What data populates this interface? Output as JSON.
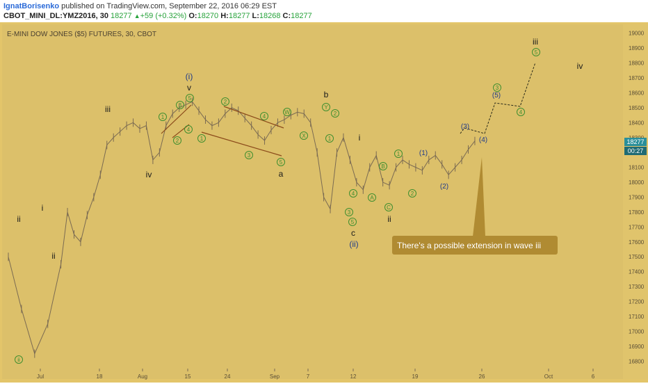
{
  "header": {
    "author": "IgnatBorisenko",
    "published_text": " published on TradingView.com, September 22, 2016 06:29 EST",
    "symbol": "CBOT_MINI_DL:YMZ2016, 30",
    "last": "18277",
    "change": "+59 (+0.32%)",
    "o_label": "O:",
    "o_value": "18270",
    "h_label": "H:",
    "h_value": "18277",
    "l_label": "L:",
    "l_value": "18268",
    "c_label": "C:",
    "c_value": "18277"
  },
  "colors": {
    "background": "#e3c56a",
    "panel": "#dcc06a",
    "candles": "#7a6a52",
    "wave_lines": "#8b4a1a",
    "circle_labels": "#3f8f2f",
    "label_dark": "#1a1a1a",
    "blue_labels": "#1f3a8a",
    "callout": "#b08b32",
    "price_tag": "#2a8f9a"
  },
  "chart_data": {
    "type": "line",
    "title": "E-MINI DOW JONES ($5) FUTURES, 30, CBOT",
    "ylim": [
      16750,
      19050
    ],
    "y_ticks": [
      16800,
      16900,
      17000,
      17100,
      17200,
      17300,
      17400,
      17500,
      17600,
      17700,
      17800,
      17900,
      18000,
      18100,
      18200,
      18300,
      18400,
      18500,
      18600,
      18700,
      18800,
      18900,
      19000
    ],
    "x_ticks": [
      "Jul",
      "18",
      "Aug",
      "15",
      "24",
      "Sep",
      "7",
      "12",
      "19",
      "26",
      "Oct",
      "6"
    ],
    "current_price": "18277",
    "countdown": "00:27",
    "price_series": [
      [
        0,
        17500
      ],
      [
        2,
        17150
      ],
      [
        4,
        16850
      ],
      [
        6,
        17050
      ],
      [
        8,
        17450
      ],
      [
        9,
        17800
      ],
      [
        10,
        17650
      ],
      [
        11,
        17600
      ],
      [
        12,
        17780
      ],
      [
        13,
        17900
      ],
      [
        14,
        18050
      ],
      [
        15,
        18250
      ],
      [
        16,
        18300
      ],
      [
        17,
        18340
      ],
      [
        18,
        18380
      ],
      [
        19,
        18400
      ],
      [
        20,
        18360
      ],
      [
        21,
        18380
      ],
      [
        22,
        18150
      ],
      [
        23,
        18200
      ],
      [
        24,
        18380
      ],
      [
        25,
        18460
      ],
      [
        26,
        18500
      ],
      [
        27,
        18520
      ],
      [
        28,
        18540
      ],
      [
        29,
        18480
      ],
      [
        30,
        18420
      ],
      [
        31,
        18380
      ],
      [
        32,
        18400
      ],
      [
        33,
        18460
      ],
      [
        34,
        18500
      ],
      [
        35,
        18480
      ],
      [
        36,
        18430
      ],
      [
        37,
        18380
      ],
      [
        38,
        18320
      ],
      [
        39,
        18280
      ],
      [
        40,
        18350
      ],
      [
        41,
        18400
      ],
      [
        42,
        18420
      ],
      [
        43,
        18450
      ],
      [
        44,
        18470
      ],
      [
        45,
        18460
      ],
      [
        46,
        18400
      ],
      [
        47,
        18200
      ],
      [
        48,
        17900
      ],
      [
        49,
        17820
      ],
      [
        50,
        18200
      ],
      [
        51,
        18300
      ],
      [
        52,
        18150
      ],
      [
        53,
        18000
      ],
      [
        54,
        17950
      ],
      [
        55,
        18100
      ],
      [
        56,
        18180
      ],
      [
        57,
        18000
      ],
      [
        58,
        17980
      ],
      [
        59,
        18100
      ],
      [
        60,
        18150
      ],
      [
        61,
        18120
      ],
      [
        62,
        18100
      ],
      [
        63,
        18080
      ],
      [
        64,
        18150
      ],
      [
        65,
        18180
      ],
      [
        66,
        18120
      ],
      [
        67,
        18050
      ],
      [
        68,
        18100
      ],
      [
        69,
        18150
      ],
      [
        70,
        18220
      ],
      [
        71,
        18277
      ]
    ],
    "projection": [
      [
        71,
        18350
      ],
      [
        73,
        18350
      ],
      [
        75,
        18530
      ],
      [
        78,
        18500
      ],
      [
        80,
        18820
      ]
    ]
  },
  "labels": {
    "wave_i": "i",
    "wave_ii": "ii",
    "wave_iii": "iii",
    "wave_iv": "iv",
    "wave_v": "v",
    "paren_i": "(i)",
    "paren_ii": "(ii)",
    "a": "a",
    "b": "b",
    "c": "c",
    "ii_low": "ii",
    "i_mid": "i",
    "ii_mid": "ii",
    "p1": "(1)",
    "p2": "(2)",
    "p3": "(3)",
    "p4": "(4)",
    "p5": "(5)",
    "iii_top": "iii",
    "iv_right": "iv",
    "n1": "1",
    "n2": "2",
    "n3": "3",
    "n4": "4",
    "n5": "5",
    "A": "A",
    "B": "B",
    "C": "C",
    "W": "W",
    "X": "X",
    "Y": "Y"
  },
  "callout_text": "There's a possible extension in wave iii"
}
